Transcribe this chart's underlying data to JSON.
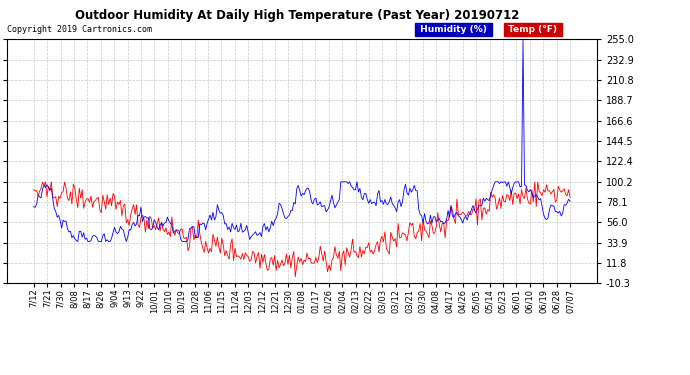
{
  "title": "Outdoor Humidity At Daily High Temperature (Past Year) 20190712",
  "copyright": "Copyright 2019 Cartronics.com",
  "legend_humidity": "Humidity (%)",
  "legend_temp": "Temp (°F)",
  "humidity_color": "#0000ff",
  "temp_color": "#ff0000",
  "legend_humidity_bg": "#0000bb",
  "legend_temp_bg": "#cc0000",
  "bg_color": "#ffffff",
  "grid_color": "#bbbbbb",
  "ylim_min": -10.3,
  "ylim_max": 255.0,
  "yticks": [
    -10.3,
    11.8,
    33.9,
    56.0,
    78.1,
    100.2,
    122.4,
    144.5,
    166.6,
    188.7,
    210.8,
    232.9,
    255.0
  ],
  "xtick_labels": [
    "7/12",
    "7/21",
    "7/30",
    "8/08",
    "8/17",
    "8/26",
    "9/04",
    "9/13",
    "9/22",
    "10/01",
    "10/10",
    "10/19",
    "10/28",
    "11/06",
    "11/15",
    "11/24",
    "12/03",
    "12/12",
    "12/21",
    "12/30",
    "01/08",
    "01/17",
    "01/26",
    "02/04",
    "02/13",
    "02/22",
    "03/03",
    "03/12",
    "03/21",
    "03/30",
    "04/08",
    "04/17",
    "04/26",
    "05/05",
    "05/14",
    "05/23",
    "06/01",
    "06/10",
    "06/19",
    "06/28",
    "07/07"
  ],
  "num_points": 366,
  "spike_index": 333,
  "spike_value": 255.0
}
